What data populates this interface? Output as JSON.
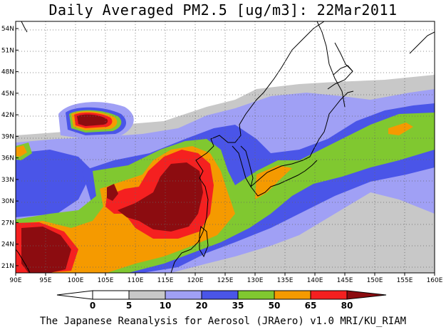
{
  "title": "Daily Averaged PM2.5 [ug/m3]: 22Mar2011",
  "credit": "The Japanese Reanalysis for Aerosol (JRAero) v1.0 MRI/KU_RIAM",
  "map": {
    "lon_range": [
      90,
      160
    ],
    "lat_range": [
      20,
      55
    ],
    "lon_ticks": [
      "90E",
      "95E",
      "100E",
      "105E",
      "110E",
      "115E",
      "120E",
      "125E",
      "130E",
      "135E",
      "140E",
      "145E",
      "150E",
      "155E",
      "160E"
    ],
    "lat_ticks": [
      "21N",
      "24N",
      "27N",
      "30N",
      "33N",
      "36N",
      "39N",
      "42N",
      "45N",
      "48N",
      "51N",
      "54N"
    ],
    "gridlines": "dotted"
  },
  "colorbar": {
    "levels": [
      "0",
      "5",
      "10",
      "20",
      "35",
      "50",
      "65",
      "80"
    ],
    "colors": [
      "#ffffff",
      "#c8c8c8",
      "#a0a0f5",
      "#4a55e8",
      "#80c830",
      "#f59a00",
      "#f52020",
      "#8c0c10"
    ]
  },
  "colors": {
    "c0": "#ffffff",
    "c5": "#c8c8c8",
    "c10": "#a0a0f5",
    "c20": "#4a55e8",
    "c35": "#80c830",
    "c50": "#f59a00",
    "c65": "#f52020",
    "c80": "#8c0c10"
  }
}
